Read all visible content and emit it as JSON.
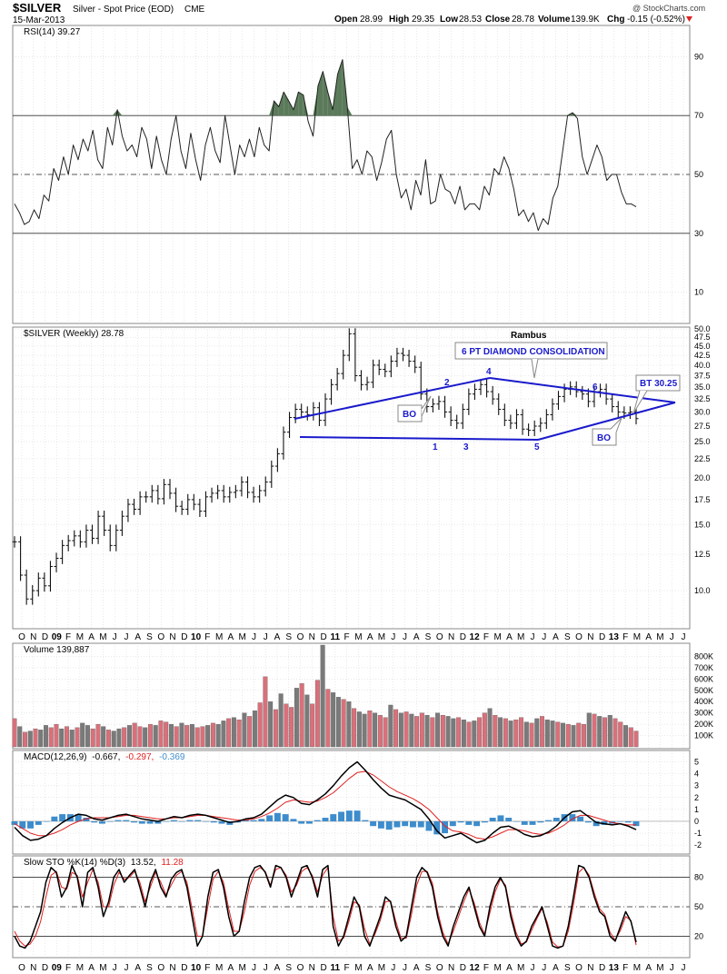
{
  "header": {
    "symbol": "$SILVER",
    "name": "Silver - Spot Price (EOD)",
    "exchange": "CME",
    "date": "15-Mar-2013",
    "copyright": "@ StockCharts.com",
    "quote": {
      "open_label": "Open",
      "open": "28.99",
      "high_label": "High",
      "high": "29.35",
      "low_label": "Low",
      "low": "28.53",
      "close_label": "Close",
      "close": "28.78",
      "volume_label": "Volume",
      "volume": "139.9K",
      "chg_label": "Chg",
      "chg": "-0.15 (-0.52%)"
    }
  },
  "colors": {
    "grid": "#c8c8c8",
    "up_volume": "#d9707a",
    "down_volume": "#7a7a7a",
    "macd_hist": "#3d8ccc",
    "signal": "#e02020",
    "diamond": "#1a1acc",
    "rsi_fill": "#5a7a5a"
  },
  "x_axis": {
    "labels": [
      "O",
      "N",
      "D",
      "09",
      "F",
      "M",
      "A",
      "M",
      "J",
      "J",
      "A",
      "S",
      "O",
      "N",
      "D",
      "10",
      "F",
      "M",
      "A",
      "M",
      "J",
      "J",
      "A",
      "S",
      "O",
      "N",
      "D",
      "11",
      "F",
      "M",
      "A",
      "M",
      "J",
      "J",
      "A",
      "S",
      "O",
      "N",
      "D",
      "12",
      "F",
      "M",
      "A",
      "M",
      "J",
      "J",
      "A",
      "S",
      "O",
      "N",
      "D",
      "13",
      "F",
      "M",
      "A",
      "M",
      "J",
      "J"
    ],
    "bold_labels": [
      "09",
      "10",
      "11",
      "12",
      "13"
    ]
  },
  "chart_data": [
    {
      "type": "line",
      "panel": "rsi",
      "title": "RSI(14) 39.27",
      "ylim": [
        0,
        100
      ],
      "y_ticks": [
        10,
        30,
        50,
        70,
        90
      ],
      "ref_lines": [
        30,
        50,
        70
      ],
      "series": [
        {
          "values": [
            40,
            37,
            33,
            34,
            38,
            35,
            43,
            41,
            52,
            48,
            56,
            50,
            60,
            55,
            62,
            58,
            65,
            55,
            52,
            66,
            60,
            72,
            63,
            58,
            60,
            56,
            66,
            62,
            52,
            63,
            55,
            50,
            62,
            70,
            58,
            52,
            64,
            55,
            48,
            60,
            66,
            58,
            54,
            70,
            60,
            50,
            60,
            56,
            62,
            56,
            66,
            60,
            58,
            75,
            73,
            78,
            75,
            72,
            78,
            77,
            68,
            63,
            80,
            85,
            78,
            72,
            84,
            89,
            73,
            52,
            55,
            50,
            58,
            56,
            48,
            54,
            62,
            65,
            50,
            42,
            45,
            38,
            48,
            43,
            55,
            40,
            41,
            50,
            45,
            44,
            40,
            46,
            38,
            40,
            40,
            38,
            46,
            43,
            52,
            50,
            56,
            52,
            45,
            36,
            38,
            34,
            37,
            31,
            35,
            33,
            42,
            46,
            58,
            70,
            71,
            69,
            56,
            50,
            55,
            60,
            56,
            48,
            50,
            50,
            44,
            40,
            40,
            39
          ]
        }
      ]
    },
    {
      "type": "ohlc",
      "panel": "price",
      "title": "$SILVER (Weekly) 28.78",
      "ylim": [
        8,
        50
      ],
      "y_ticks": [
        10,
        12.5,
        15,
        17.5,
        20,
        22.5,
        25,
        27.5,
        30,
        32.5,
        35,
        37.5,
        40,
        42.5,
        45,
        47.5,
        50
      ],
      "series": [
        {
          "values": [
            13.5,
            11.0,
            9.5,
            10.0,
            10.8,
            10.3,
            11.6,
            12.2,
            13.2,
            13.6,
            14.0,
            13.5,
            14.5,
            13.8,
            15.8,
            14.5,
            13.2,
            14.5,
            15.8,
            17.0,
            16.5,
            17.8,
            17.8,
            18.5,
            17.6,
            19.2,
            18.2,
            16.8,
            16.5,
            17.5,
            17.0,
            16.3,
            17.8,
            18.2,
            18.5,
            17.8,
            18.3,
            18.5,
            19.5,
            18.3,
            17.8,
            18.5,
            19.5,
            21.5,
            23.2,
            26.5,
            29.0,
            30.5,
            30.0,
            29.5,
            30.8,
            28.5,
            32.5,
            35.5,
            38.0,
            42.5,
            48.5,
            37.5,
            35.5,
            36.0,
            40.0,
            39.0,
            38.5,
            41.0,
            43.0,
            42.5,
            41.0,
            39.5,
            33.5,
            31.0,
            31.5,
            32.0,
            30.0,
            28.5,
            28.0,
            30.5,
            33.5,
            34.5,
            35.5,
            34.0,
            32.5,
            30.5,
            28.5,
            28.0,
            29.5,
            27.0,
            26.8,
            27.5,
            28.0,
            29.5,
            31.5,
            33.0,
            34.5,
            35.0,
            34.0,
            33.5,
            32.0,
            34.0,
            34.5,
            32.5,
            31.0,
            30.0,
            29.8,
            30.0,
            28.8
          ]
        }
      ]
    },
    {
      "type": "bar",
      "panel": "volume",
      "title": "Volume 139,887",
      "ylim": [
        0,
        900
      ],
      "y_ticks": [
        100,
        200,
        300,
        400,
        500,
        600,
        700,
        800
      ],
      "y_tick_labels": [
        "100K",
        "200K",
        "300K",
        "400K",
        "500K",
        "600K",
        "700K",
        "800K"
      ],
      "values": [
        250,
        180,
        130,
        140,
        160,
        150,
        190,
        170,
        200,
        160,
        180,
        150,
        170,
        210,
        190,
        160,
        200,
        180,
        150,
        140,
        160,
        170,
        190,
        210,
        180,
        170,
        200,
        190,
        230,
        220,
        200,
        180,
        210,
        190,
        200,
        170,
        180,
        190,
        210,
        200,
        230,
        250,
        260,
        240,
        300,
        270,
        320,
        390,
        620,
        400,
        330,
        470,
        380,
        350,
        520,
        560,
        460,
        380,
        590,
        900,
        510,
        480,
        440,
        420,
        400,
        340,
        310,
        290,
        320,
        300,
        280,
        260,
        370,
        330,
        300,
        310,
        290,
        270,
        300,
        280,
        260,
        300,
        280,
        270,
        250,
        260,
        240,
        220,
        230,
        260,
        300,
        340,
        280,
        260,
        250,
        230,
        240,
        260,
        220,
        210,
        250,
        270,
        240,
        230,
        220,
        210,
        200,
        190,
        210,
        200,
        300,
        290,
        270,
        260,
        280,
        250,
        220,
        190,
        170,
        140
      ],
      "up": [
        1,
        0,
        1,
        0,
        1,
        0,
        0,
        1,
        1,
        0,
        1,
        0,
        1,
        0,
        0,
        1,
        1,
        0,
        1,
        0,
        0,
        1,
        0,
        1,
        1,
        0,
        1,
        0,
        1,
        1,
        0,
        1,
        0,
        1,
        0,
        1,
        1,
        0,
        1,
        0,
        0,
        1,
        0,
        1,
        0,
        1,
        0,
        1,
        1,
        0,
        1,
        0,
        1,
        1,
        0,
        1,
        0,
        1,
        1,
        0,
        1,
        0,
        0,
        1,
        0,
        1,
        0,
        0,
        1,
        0,
        1,
        1,
        0,
        1,
        0,
        1,
        0,
        1,
        1,
        0,
        1,
        0,
        1,
        0,
        0,
        1,
        0,
        1,
        0,
        1,
        1,
        0,
        1,
        0,
        1,
        0,
        1,
        1,
        0,
        1,
        0,
        1,
        0,
        0,
        1,
        0,
        1,
        0,
        1,
        1,
        0,
        1,
        0,
        1,
        0,
        1,
        1,
        0,
        1,
        1
      ]
    },
    {
      "type": "line",
      "panel": "macd",
      "title": "MACD(12,26,9) -0.667, -0.297, -0.369",
      "title_parts": [
        "MACD(12,26,9)",
        "-0.667,",
        "-0.297,",
        "-0.369"
      ],
      "ylim": [
        -2.6,
        5.8
      ],
      "y_ticks": [
        -2,
        -1,
        0,
        1,
        2,
        3,
        4,
        5
      ],
      "series": [
        {
          "values": [
            -0.5,
            -1.2,
            -1.6,
            -1.5,
            -1.2,
            -0.6,
            -0.1,
            0.3,
            0.6,
            0.5,
            0.2,
            0.1,
            0.3,
            0.5,
            0.6,
            0.4,
            0.2,
            0.1,
            0.0,
            0.2,
            0.4,
            0.3,
            0.5,
            0.6,
            0.5,
            0.3,
            0.1,
            -0.1,
            0.0,
            0.2,
            0.3,
            0.6,
            1.2,
            1.8,
            2.2,
            2.0,
            1.5,
            1.4,
            1.8,
            2.3,
            3.0,
            3.8,
            4.5,
            5.0,
            4.3,
            3.5,
            2.8,
            2.2,
            2.0,
            1.8,
            1.4,
            1.0,
            0.2,
            -0.8,
            -1.4,
            -1.2,
            -1.0,
            -1.4,
            -1.8,
            -1.6,
            -1.0,
            -0.5,
            -0.4,
            -0.7,
            -1.1,
            -1.3,
            -1.2,
            -0.9,
            -0.4,
            0.3,
            0.8,
            0.9,
            0.4,
            -0.1,
            -0.2,
            -0.3,
            -0.2,
            -0.4,
            -0.7
          ]
        },
        {
          "values": [
            -0.2,
            -0.6,
            -1.0,
            -1.2,
            -1.2,
            -1.0,
            -0.7,
            -0.3,
            0.0,
            0.2,
            0.3,
            0.3,
            0.3,
            0.4,
            0.5,
            0.5,
            0.4,
            0.3,
            0.2,
            0.2,
            0.3,
            0.3,
            0.4,
            0.5,
            0.5,
            0.4,
            0.3,
            0.2,
            0.1,
            0.1,
            0.2,
            0.4,
            0.7,
            1.1,
            1.6,
            1.8,
            1.7,
            1.6,
            1.7,
            2.0,
            2.4,
            3.0,
            3.6,
            4.1,
            4.2,
            3.9,
            3.4,
            2.9,
            2.5,
            2.2,
            1.9,
            1.5,
            1.0,
            0.3,
            -0.4,
            -0.8,
            -0.9,
            -1.1,
            -1.4,
            -1.5,
            -1.3,
            -1.0,
            -0.7,
            -0.7,
            -0.8,
            -1.0,
            -1.1,
            -1.0,
            -0.7,
            -0.3,
            0.2,
            0.5,
            0.5,
            0.3,
            0.1,
            -0.1,
            -0.2,
            -0.3,
            -0.3
          ]
        }
      ],
      "histogram": [
        -0.3,
        -0.6,
        -0.6,
        -0.3,
        0.0,
        0.4,
        0.6,
        0.6,
        0.6,
        0.3,
        -0.1,
        -0.2,
        0.0,
        0.1,
        0.1,
        -0.1,
        -0.2,
        -0.2,
        -0.2,
        0.0,
        0.1,
        0.0,
        0.1,
        0.1,
        0.0,
        -0.1,
        -0.2,
        -0.3,
        -0.1,
        0.1,
        0.1,
        0.2,
        0.5,
        0.7,
        0.6,
        0.2,
        -0.2,
        -0.2,
        0.1,
        0.3,
        0.6,
        0.8,
        0.9,
        0.9,
        0.1,
        -0.4,
        -0.6,
        -0.7,
        -0.5,
        -0.4,
        -0.5,
        -0.5,
        -0.8,
        -1.1,
        -1.0,
        -0.4,
        -0.1,
        -0.3,
        -0.4,
        -0.1,
        0.3,
        0.5,
        0.3,
        0.0,
        -0.3,
        -0.3,
        -0.1,
        0.1,
        0.3,
        0.6,
        0.6,
        0.4,
        -0.1,
        -0.4,
        -0.3,
        -0.2,
        0.0,
        -0.1,
        -0.4
      ]
    },
    {
      "type": "line",
      "panel": "sto",
      "title": "Slow STO %K(14) %D(3) 13.52, 11.28",
      "title_parts": [
        "Slow STO %K(14) %D(3)",
        "13.52,",
        "11.28"
      ],
      "ylim": [
        0,
        100
      ],
      "y_ticks": [
        20,
        50,
        80
      ],
      "ref_lines": [
        20,
        50,
        80
      ],
      "series": [
        {
          "values": [
            20,
            10,
            8,
            15,
            30,
            45,
            75,
            90,
            85,
            60,
            70,
            92,
            80,
            50,
            85,
            90,
            70,
            40,
            55,
            80,
            88,
            75,
            82,
            88,
            70,
            50,
            75,
            88,
            70,
            60,
            78,
            85,
            88,
            70,
            40,
            10,
            20,
            60,
            85,
            88,
            70,
            40,
            20,
            25,
            55,
            80,
            90,
            92,
            85,
            70,
            92,
            90,
            80,
            60,
            75,
            90,
            92,
            80,
            60,
            88,
            92,
            30,
            10,
            20,
            40,
            60,
            50,
            20,
            10,
            25,
            40,
            60,
            55,
            30,
            15,
            20,
            50,
            80,
            90,
            85,
            70,
            40,
            20,
            10,
            30,
            45,
            60,
            70,
            50,
            30,
            20,
            50,
            70,
            80,
            70,
            40,
            20,
            10,
            15,
            30,
            40,
            50,
            30,
            10,
            8,
            10,
            30,
            60,
            92,
            90,
            80,
            60,
            45,
            40,
            20,
            15,
            30,
            45,
            35,
            14
          ]
        },
        {
          "values": [
            25,
            15,
            10,
            12,
            20,
            35,
            60,
            82,
            86,
            70,
            68,
            85,
            82,
            60,
            75,
            88,
            75,
            50,
            50,
            72,
            85,
            78,
            80,
            86,
            75,
            55,
            70,
            85,
            75,
            62,
            72,
            82,
            86,
            75,
            48,
            20,
            20,
            50,
            78,
            86,
            75,
            48,
            25,
            25,
            45,
            72,
            86,
            90,
            86,
            72,
            88,
            90,
            82,
            65,
            72,
            86,
            90,
            82,
            65,
            82,
            90,
            40,
            15,
            18,
            35,
            55,
            52,
            28,
            12,
            22,
            36,
            55,
            56,
            35,
            18,
            18,
            42,
            72,
            86,
            86,
            74,
            45,
            24,
            12,
            25,
            40,
            55,
            68,
            54,
            34,
            22,
            44,
            65,
            78,
            72,
            45,
            24,
            12,
            14,
            26,
            38,
            48,
            34,
            14,
            9,
            10,
            25,
            52,
            85,
            90,
            82,
            64,
            48,
            42,
            24,
            16,
            26,
            40,
            36,
            11
          ]
        }
      ]
    }
  ],
  "annotations": {
    "author": "Rambus",
    "pattern": "6 PT DIAMOND CONSOLIDATION",
    "points": [
      "1",
      "2",
      "3",
      "4",
      "5",
      "6"
    ],
    "bo1": "BO",
    "bo2": "BO",
    "bt": "BT 30.25"
  }
}
